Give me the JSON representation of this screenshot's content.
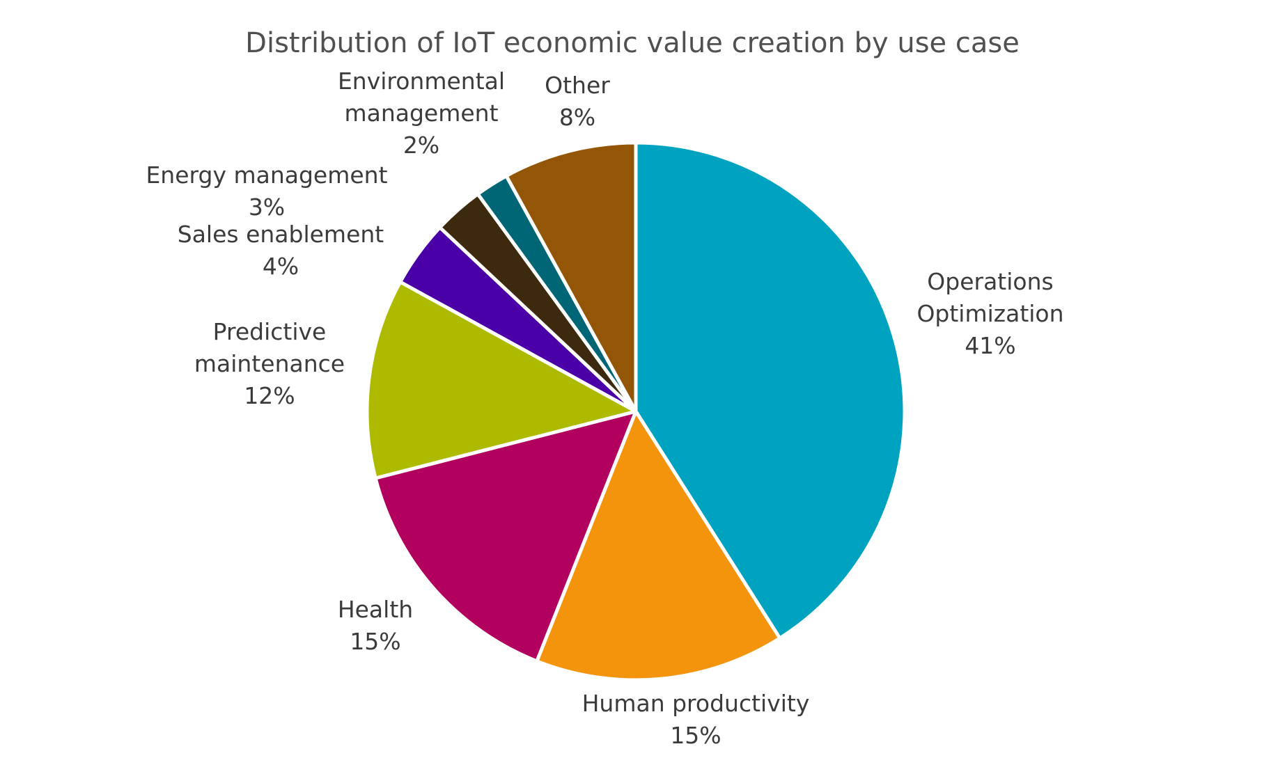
{
  "chart_data": {
    "type": "pie",
    "title": "Distribution of IoT economic value creation by use case",
    "slices": [
      {
        "label_lines": [
          "Operations",
          "Optimization"
        ],
        "value": 41,
        "value_label": "41%",
        "color": "#00A3BF"
      },
      {
        "label_lines": [
          "Human productivity"
        ],
        "value": 15,
        "value_label": "15%",
        "color": "#F4940D"
      },
      {
        "label_lines": [
          "Health"
        ],
        "value": 15,
        "value_label": "15%",
        "color": "#B1005D"
      },
      {
        "label_lines": [
          "Predictive",
          "maintenance"
        ],
        "value": 12,
        "value_label": "12%",
        "color": "#ADBA00"
      },
      {
        "label_lines": [
          "Sales enablement"
        ],
        "value": 4,
        "value_label": "4%",
        "color": "#4A00A6"
      },
      {
        "label_lines": [
          "Energy management"
        ],
        "value": 3,
        "value_label": "3%",
        "color": "#3D2A0E"
      },
      {
        "label_lines": [
          "Environmental",
          "management"
        ],
        "value": 2,
        "value_label": "2%",
        "color": "#006675"
      },
      {
        "label_lines": [
          "Other"
        ],
        "value": 8,
        "value_label": "8%",
        "color": "#925606"
      }
    ],
    "start": "12 o'clock",
    "direction": "clockwise",
    "legend": "none"
  }
}
